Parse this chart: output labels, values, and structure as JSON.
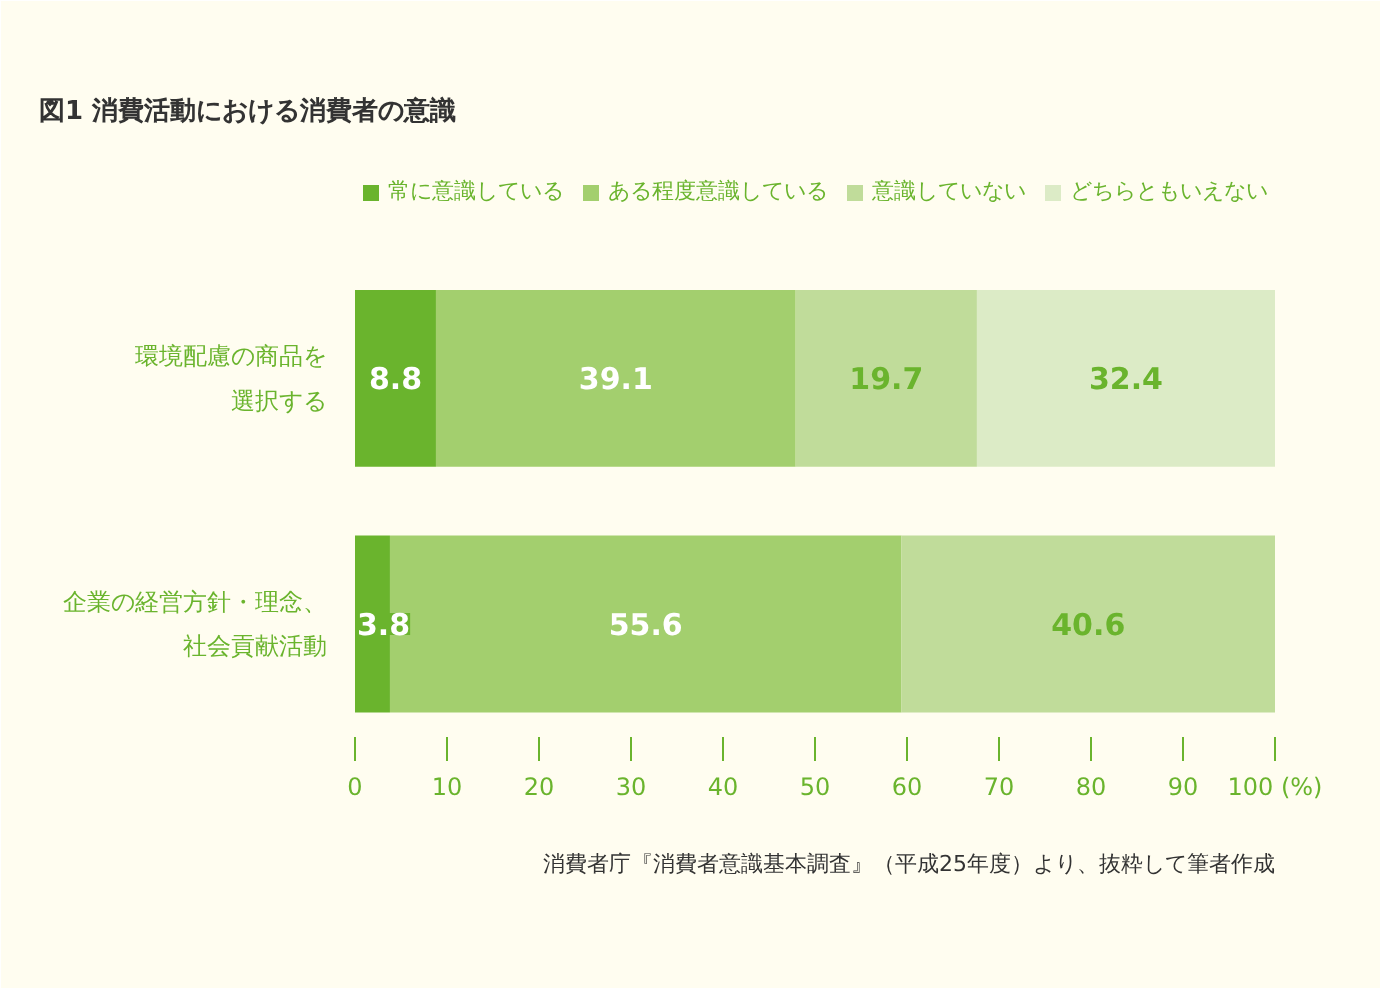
{
  "chart_data": {
    "type": "bar",
    "orientation": "horizontal",
    "stacked": true,
    "title": "図1 消費活動における消費者の意識",
    "categories": [
      "環境配慮の商品を選択する",
      "企業の経営方針・理念、社会貢献活動"
    ],
    "series": [
      {
        "name": "常に意識している",
        "color": "#6ab42d",
        "values": [
          8.8,
          3.8
        ]
      },
      {
        "name": "ある程度意識している",
        "color": "#a3cf6e",
        "values": [
          39.1,
          55.6
        ]
      },
      {
        "name": "意識していない",
        "color": "#c0dc9a",
        "values": [
          19.7,
          40.6
        ]
      },
      {
        "name": "どちらともいえない",
        "color": "#dcebc6",
        "values": [
          32.4,
          null
        ]
      }
    ],
    "xlim": [
      0,
      100
    ],
    "xticks": [
      0,
      10,
      20,
      30,
      40,
      50,
      60,
      70,
      80,
      90,
      {
        "value": 100,
        "label": "100 (%)"
      }
    ],
    "grid": false,
    "legend": "top",
    "data_labels": true,
    "annotations": [
      "消費者庁『消費者意識基本調査』（平成25年度）より、抜粋して筆者作成"
    ]
  }
}
